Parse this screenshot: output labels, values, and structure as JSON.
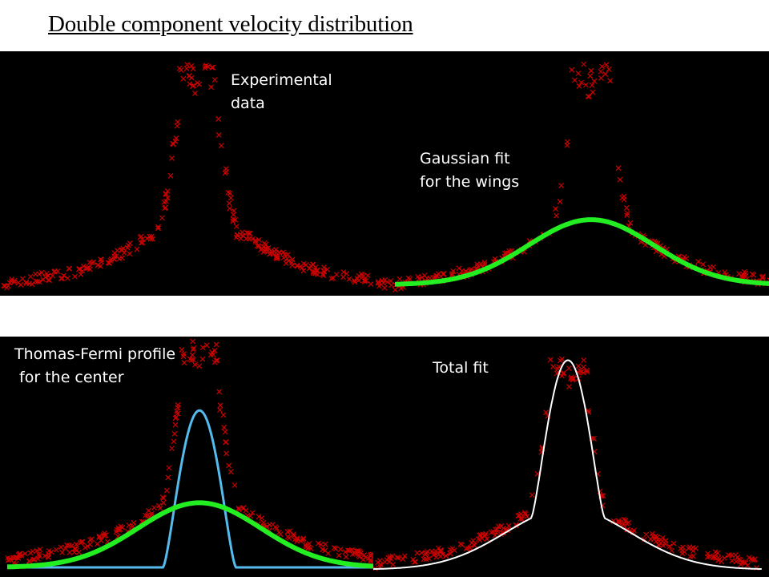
{
  "page": {
    "title": "Double component velocity distribution",
    "background": "#ffffff"
  },
  "colors": {
    "panel_bg": "#000000",
    "data_marker": "#cc0000",
    "gaussian_fit": "#22ee22",
    "thomas_fermi_fit": "#55bbee",
    "total_fit": "#ffffff"
  },
  "annotations": {
    "experimental_1": "Experimental",
    "experimental_2": "data",
    "gaussian_1": "Gaussian fit",
    "gaussian_2": "for the wings",
    "tf_1": "Thomas-Fermi profile",
    "tf_2": " for the center",
    "total": "Total fit"
  },
  "chart_data": [
    {
      "type": "scatter",
      "panel": "experimental-data",
      "title": "",
      "xlabel": "",
      "ylabel": "",
      "x_range": [
        -10,
        10
      ],
      "y_range": [
        0,
        1.1
      ],
      "grid": false,
      "axes_visible": false,
      "series": [
        {
          "marker": "x",
          "color": "#cc0000",
          "model": "two-component",
          "peak_center": 0,
          "peak_value": 1.0,
          "profile_x": [
            -10,
            -6,
            -4,
            -3,
            -2,
            -1.6,
            -1.2,
            -0.6,
            0,
            0.6,
            1.2,
            1.6,
            2,
            3,
            4,
            6,
            10
          ],
          "profile_y": [
            0.03,
            0.09,
            0.16,
            0.21,
            0.26,
            0.4,
            0.66,
            0.9,
            0.95,
            0.9,
            0.66,
            0.4,
            0.26,
            0.21,
            0.16,
            0.09,
            0.03
          ]
        }
      ]
    },
    {
      "type": "line",
      "panel": "gaussian-fit",
      "title": "",
      "xlabel": "",
      "ylabel": "",
      "x_range": [
        -10,
        10
      ],
      "y_range": [
        0,
        1.1
      ],
      "grid": false,
      "axes_visible": false,
      "series": [
        {
          "marker": "x",
          "color": "#cc0000",
          "role": "data",
          "peak_center": 0
        },
        {
          "name": "Gaussian fit",
          "color": "#22ee22",
          "role": "fit",
          "center": 0,
          "amplitude": 0.28,
          "sigma": 3.2,
          "offset": 0.03
        }
      ]
    },
    {
      "type": "line",
      "panel": "thomas-fermi",
      "title": "",
      "xlabel": "",
      "ylabel": "",
      "x_range": [
        -10,
        10
      ],
      "y_range": [
        0,
        1.1
      ],
      "grid": false,
      "axes_visible": false,
      "series": [
        {
          "marker": "x",
          "color": "#cc0000",
          "role": "data",
          "peak_center": 0
        },
        {
          "name": "Thomas-Fermi profile",
          "color": "#55bbee",
          "role": "fit",
          "center": 0,
          "amplitude": 0.68,
          "radius": 1.9
        },
        {
          "name": "Gaussian fit",
          "color": "#22ee22",
          "role": "fit",
          "center": 0,
          "amplitude": 0.28,
          "sigma": 3.2,
          "offset": 0.03
        }
      ]
    },
    {
      "type": "line",
      "panel": "total-fit",
      "title": "",
      "xlabel": "",
      "ylabel": "",
      "x_range": [
        -10,
        10
      ],
      "y_range": [
        0,
        1.1
      ],
      "grid": false,
      "axes_visible": false,
      "series": [
        {
          "marker": "x",
          "color": "#cc0000",
          "role": "data",
          "peak_center": 0
        },
        {
          "name": "Total fit",
          "color": "#ffffff",
          "role": "fit",
          "center": 0,
          "tf_amplitude": 0.68,
          "tf_radius": 1.9,
          "g_amplitude": 0.28,
          "g_sigma": 3.2,
          "offset": 0.03
        }
      ]
    }
  ]
}
